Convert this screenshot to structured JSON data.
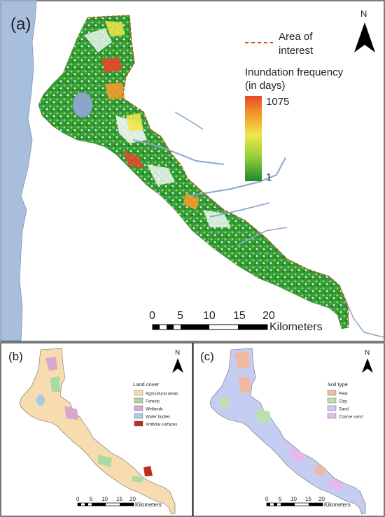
{
  "panels": {
    "a": {
      "label": "(a)",
      "north": "N",
      "legend_line_text_1": "Area of",
      "legend_line_text_2": "interest",
      "freq_title_1": "Inundation frequency",
      "freq_title_2": "(in days)",
      "freq_max": "1075",
      "freq_min": "1",
      "scale_ticks": [
        "0",
        "5",
        "10",
        "15",
        "20"
      ],
      "scale_unit": "Kilometers",
      "colors": {
        "sea": "#a7bfdc",
        "interest_line": "#c0511a",
        "river": "#8aa6c8",
        "green_dark": "#1d8a2a",
        "green_light": "#9bd23d",
        "yellow": "#f2e64a",
        "orange": "#f39a2b",
        "red": "#e5482a"
      }
    },
    "b": {
      "label": "(b)",
      "north": "N",
      "legend_title": "Land cover",
      "legend_items": [
        {
          "label": "Agricultural areas",
          "color": "#f6dcae"
        },
        {
          "label": "Forests",
          "color": "#a9d9a4"
        },
        {
          "label": "Wetlands",
          "color": "#d8a7cd"
        },
        {
          "label": "Water bodies",
          "color": "#a6cde8"
        },
        {
          "label": "Artificial surfaces",
          "color": "#c12a1f"
        }
      ],
      "scale_ticks": [
        "0",
        "5",
        "10",
        "15",
        "20"
      ],
      "scale_unit": "Kilometers"
    },
    "c": {
      "label": "(c)",
      "north": "N",
      "legend_title": "Soil type",
      "legend_items": [
        {
          "label": "Peat",
          "color": "#f2b7a0"
        },
        {
          "label": "Clay",
          "color": "#bde0b0"
        },
        {
          "label": "Sand",
          "color": "#c6cdf3"
        },
        {
          "label": "Coarse sand",
          "color": "#e7b8ea"
        }
      ],
      "scale_ticks": [
        "0",
        "5",
        "10",
        "15",
        "20"
      ],
      "scale_unit": "Kilometers"
    }
  }
}
